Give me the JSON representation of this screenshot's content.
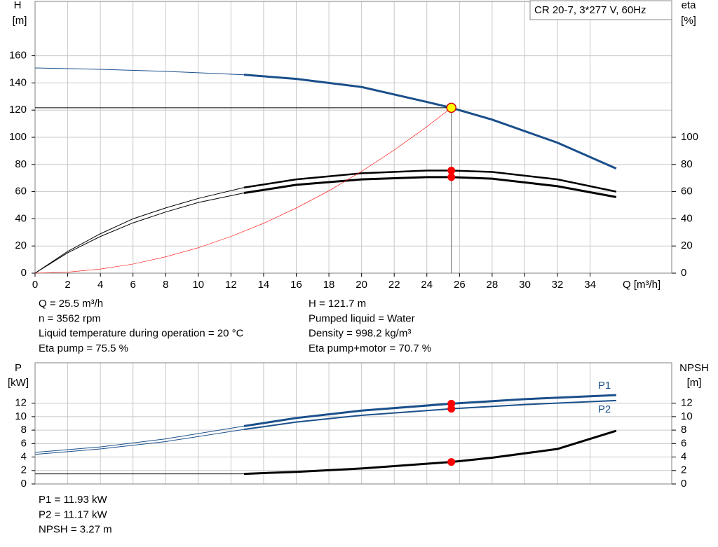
{
  "model_label": "CR 20-7, 3*277 V, 60Hz",
  "chart_data": [
    {
      "type": "line",
      "xlabel": "Q [m³/h]",
      "ylabel": [
        "H",
        "[m]"
      ],
      "y2label": [
        "eta",
        "[%]"
      ],
      "xlim": [
        0,
        39
      ],
      "xticks": [
        0,
        2,
        4,
        6,
        8,
        10,
        12,
        14,
        16,
        18,
        20,
        22,
        24,
        26,
        28,
        30,
        32,
        34
      ],
      "ylim": [
        0,
        200
      ],
      "yticks": [
        0,
        20,
        40,
        60,
        80,
        100,
        120,
        140,
        160
      ],
      "y2lim": [
        0,
        200
      ],
      "y2ticks": [
        0,
        20,
        40,
        60,
        80,
        100
      ],
      "grid": true,
      "series": [
        {
          "color": "#1a4f8b",
          "width": 1,
          "x": [
            0,
            4,
            8,
            12.8
          ],
          "values": [
            151,
            150,
            148.5,
            146
          ]
        },
        {
          "color": "#1a4f8b",
          "width": 3,
          "x": [
            12.8,
            16,
            20,
            24,
            25.5,
            28,
            32,
            35.6
          ],
          "values": [
            146,
            143,
            137,
            126,
            121.7,
            113,
            96,
            77
          ],
          "marker_index": 4,
          "marker_color": "#ffff00",
          "crosshair": true
        },
        {
          "color": "#000000",
          "width": 1,
          "axis": "y2",
          "x": [
            0,
            2,
            4,
            6,
            8,
            10,
            12.8
          ],
          "values": [
            0,
            16,
            29,
            40,
            48,
            55,
            63
          ]
        },
        {
          "color": "#000000",
          "width": 2.5,
          "axis": "y2",
          "x": [
            12.8,
            16,
            20,
            24,
            25.5,
            28,
            32,
            35.6
          ],
          "values": [
            63,
            69,
            73.5,
            75.5,
            75.5,
            74.5,
            69,
            60
          ],
          "marker_index": 4,
          "marker_color": "#ff0000"
        },
        {
          "color": "#000000",
          "width": 1,
          "axis": "y2",
          "x": [
            0,
            2,
            4,
            6,
            8,
            10,
            12.8
          ],
          "values": [
            0,
            15,
            27,
            37,
            45,
            52,
            59
          ]
        },
        {
          "color": "#000000",
          "width": 3,
          "axis": "y2",
          "x": [
            12.8,
            16,
            20,
            24,
            25.5,
            28,
            32,
            35.6
          ],
          "values": [
            59,
            65,
            69,
            70.7,
            70.7,
            69.5,
            64,
            56
          ],
          "marker_index": 4,
          "marker_color": "#ff0000"
        },
        {
          "color": "#ff0000",
          "width": 0.6,
          "x": [
            0,
            2,
            4,
            6,
            8,
            10,
            12,
            14,
            16,
            18,
            20,
            22,
            24,
            25.5
          ],
          "values": [
            0,
            0.75,
            3,
            6.7,
            12,
            18.7,
            27,
            36.7,
            47.9,
            60.6,
            74.9,
            90.6,
            107.8,
            121.7
          ]
        }
      ]
    },
    {
      "type": "line",
      "ylabel": [
        "P",
        "[kW]"
      ],
      "y2label": [
        "NPSH",
        "[m]"
      ],
      "xlim": [
        0,
        39
      ],
      "ylim": [
        0,
        18
      ],
      "yticks": [
        0,
        2,
        4,
        6,
        8,
        10,
        12
      ],
      "y2lim": [
        0,
        18
      ],
      "y2ticks": [
        0,
        2,
        4,
        6,
        8,
        10,
        12
      ],
      "grid": true,
      "series": [
        {
          "color": "#1a4f8b",
          "width": 1,
          "x": [
            0,
            4,
            8,
            12.8
          ],
          "values": [
            4.7,
            5.5,
            6.7,
            8.6
          ]
        },
        {
          "name": "P1",
          "color": "#1a4f8b",
          "width": 3,
          "x": [
            12.8,
            16,
            20,
            25.5,
            30,
            35.6
          ],
          "values": [
            8.6,
            9.8,
            10.9,
            11.93,
            12.6,
            13.2
          ],
          "marker_index": 3,
          "marker_color": "#ff0000"
        },
        {
          "color": "#1a4f8b",
          "width": 1,
          "x": [
            0,
            4,
            8,
            12.8
          ],
          "values": [
            4.4,
            5.2,
            6.3,
            8.1
          ]
        },
        {
          "name": "P2",
          "color": "#1a4f8b",
          "width": 2,
          "x": [
            12.8,
            16,
            20,
            25.5,
            30,
            35.6
          ],
          "values": [
            8.1,
            9.2,
            10.2,
            11.17,
            11.8,
            12.4
          ],
          "marker_index": 3,
          "marker_color": "#ff0000"
        },
        {
          "color": "#000000",
          "width": 1,
          "axis": "y2",
          "x": [
            0,
            12.8
          ],
          "values": [
            1.5,
            1.5
          ]
        },
        {
          "color": "#000000",
          "width": 3,
          "axis": "y2",
          "x": [
            12.8,
            16,
            20,
            25.5,
            28,
            32,
            35.6
          ],
          "values": [
            1.5,
            1.8,
            2.3,
            3.27,
            3.9,
            5.2,
            7.9
          ],
          "marker_index": 3,
          "marker_color": "#ff0000"
        }
      ]
    }
  ],
  "operating_info": {
    "left": [
      "Q = 25.5 m³/h",
      "n = 3562 rpm",
      "Liquid temperature during operation = 20 °C",
      "Eta pump = 75.5 %"
    ],
    "right": [
      "H = 121.7 m",
      "Pumped liquid = Water",
      "Density = 998.2 kg/m³",
      "Eta pump+motor = 70.7 %"
    ]
  },
  "power_info": [
    "P1 = 11.93 kW",
    "P2 = 11.17 kW",
    "NPSH = 3.27 m"
  ]
}
